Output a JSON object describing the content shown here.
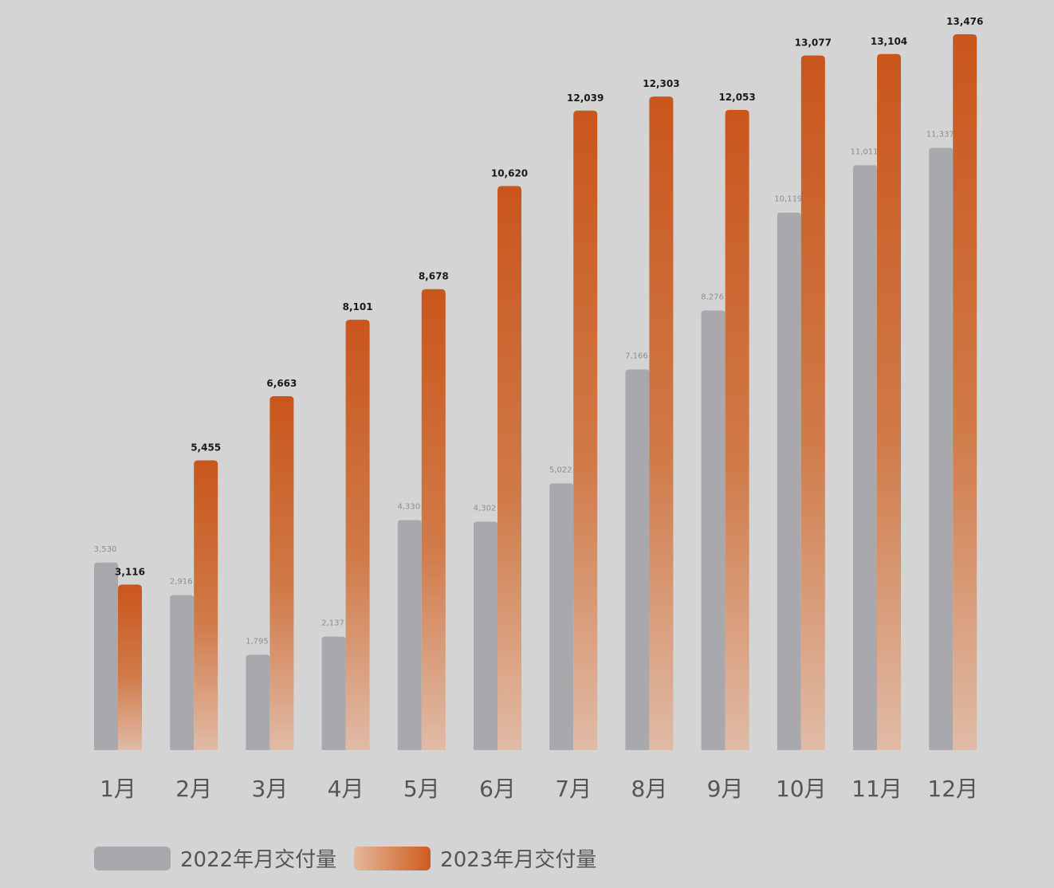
{
  "chart_data": {
    "type": "bar",
    "categories": [
      "1月",
      "2月",
      "3月",
      "4月",
      "5月",
      "6月",
      "7月",
      "8月",
      "9月",
      "10月",
      "11月",
      "12月"
    ],
    "series": [
      {
        "name": "2022年月交付量",
        "values": [
          3530,
          2916,
          1795,
          2137,
          4330,
          4302,
          5022,
          7166,
          8276,
          10119,
          11011,
          11337
        ],
        "labels": [
          "3,530",
          "2,916",
          "1,795",
          "2,137",
          "4,330",
          "4,302",
          "5,022",
          "7,166",
          "8,276",
          "10,119",
          "11,011",
          "11,337"
        ],
        "color": "#a9a9ad"
      },
      {
        "name": "2023年月交付量",
        "values": [
          3116,
          5455,
          6663,
          8101,
          8678,
          10620,
          12039,
          12303,
          12053,
          13077,
          13104,
          13476
        ],
        "labels": [
          "3,116",
          "5,455",
          "6,663",
          "8,101",
          "8,678",
          "10,620",
          "12,039",
          "12,303",
          "12,053",
          "13,077",
          "13,104",
          "13,476"
        ],
        "color_top": "#c9561c",
        "color_bottom": "#e0bba6"
      }
    ],
    "legend": "bottom-left",
    "grid": false
  },
  "colors": {
    "background": "#d4d4d4",
    "series_2022": "#a9a9ad",
    "series_2023": "#c9561c",
    "label_2022": "#8e8e92",
    "label_2023": "#1a1a1a",
    "axis_text": "#555555"
  }
}
